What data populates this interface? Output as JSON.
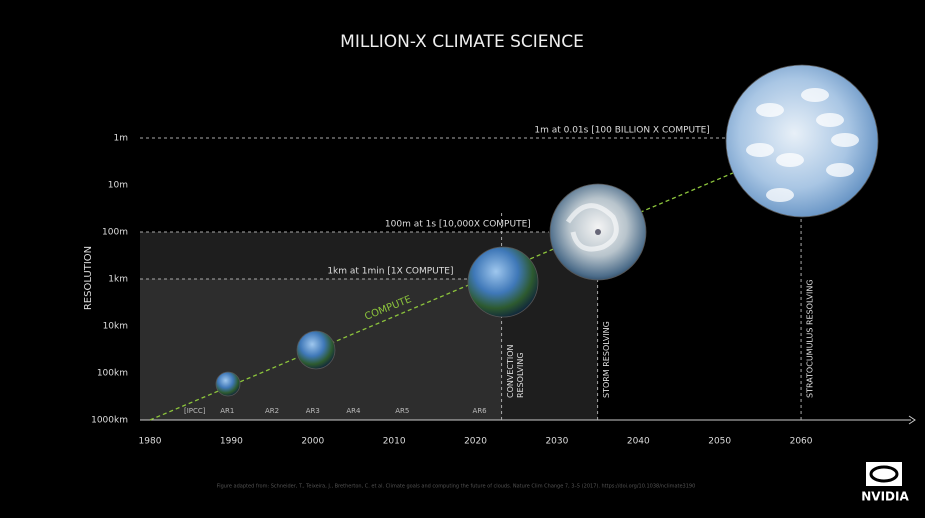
{
  "chart_data": {
    "type": "timeline",
    "title": "MILLION-X CLIMATE SCIENCE",
    "y_label": "RESOLUTION",
    "log_scale": true,
    "ylim": [
      1000000,
      1
    ],
    "yticks": [
      {
        "value": 1000000,
        "label": "1000km"
      },
      {
        "value": 100000,
        "label": "100km"
      },
      {
        "value": 10000,
        "label": "10km"
      },
      {
        "value": 1000,
        "label": "1km"
      },
      {
        "value": 100,
        "label": "100m"
      },
      {
        "value": 10,
        "label": "10m"
      },
      {
        "value": 1,
        "label": "1m"
      }
    ],
    "xlim": [
      1980,
      2074
    ],
    "xticks": [
      1980,
      1990,
      2000,
      2010,
      2020,
      2030,
      2040,
      2050,
      2060
    ],
    "reports": [
      {
        "label": "[IPCC]",
        "x": 1985.5
      },
      {
        "label": "AR1",
        "x": 1989.5
      },
      {
        "label": "AR2",
        "x": 1995
      },
      {
        "label": "AR3",
        "x": 2000
      },
      {
        "label": "AR4",
        "x": 2005
      },
      {
        "label": "AR5",
        "x": 2011
      },
      {
        "label": "AR6",
        "x": 2020.5
      }
    ],
    "reference_lines": [
      {
        "label": "1km at 1min [1X COMPUTE]",
        "y": 1000,
        "x_end": 2019.5
      },
      {
        "label": "100m at 1s [10,000X COMPUTE]",
        "y": 100,
        "x_end": 2029
      },
      {
        "label": "1m at 0.01s [100 BILLION X COMPUTE]",
        "y": 1,
        "x_end": 2051
      }
    ],
    "milestones": [
      {
        "label": [
          "CONVECTION",
          "RESOLVING"
        ],
        "x": 2023.2
      },
      {
        "label": [
          "STORM RESOLVING"
        ],
        "x": 2035
      },
      {
        "label": [
          "STRATOCUMULUS RESOLVING"
        ],
        "x": 2060
      }
    ],
    "compute_label": "COMPUTE",
    "compute_color": "#8cc43c",
    "footnote": "Figure adapted from: Schneider, T., Teixeira, J., Bretherton, C. et al. Climate goals and computing the future of clouds. Nature Clim Change 7, 3–5 (2017). https://doi.org/10.1038/nclimate3190",
    "logo": "NVIDIA"
  }
}
